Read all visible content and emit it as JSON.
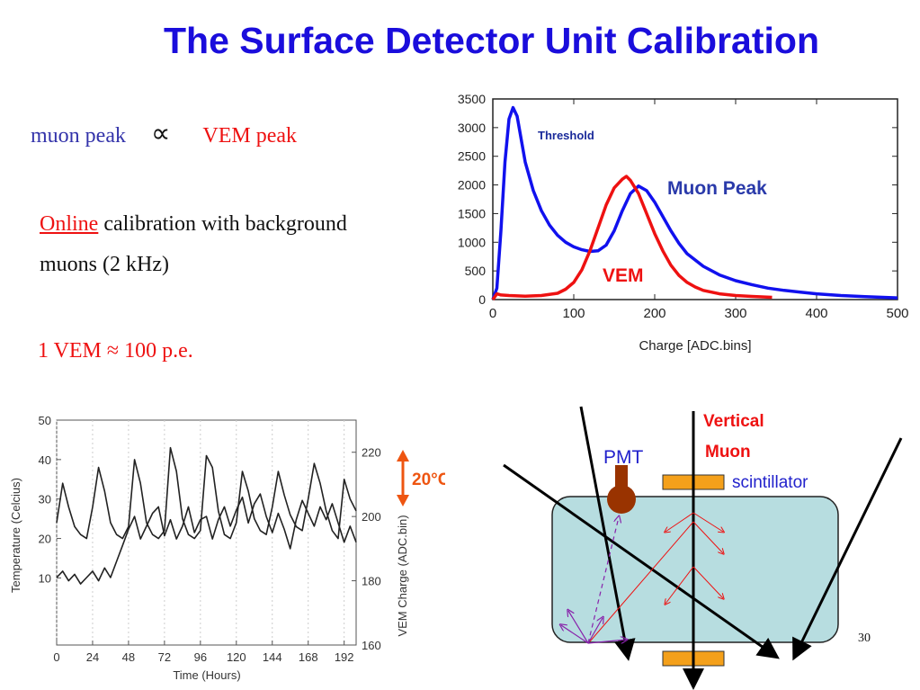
{
  "slide": {
    "title": "The Surface Detector Unit Calibration",
    "page_number": "30"
  },
  "text": {
    "muon_peak": "muon peak",
    "proportional_symbol": "∝",
    "vem_peak": "VEM peak",
    "online_word": "Online",
    "calibration_rest": " calibration with background",
    "muons_line": "muons (2 kHz)",
    "vem_pe": "1 VEM ≈ 100 p.e."
  },
  "chart_data": [
    {
      "type": "line",
      "xlabel": "Charge [ADC.bins]",
      "ylabel": "",
      "xlim": [
        0,
        500
      ],
      "ylim": [
        0,
        3500
      ],
      "x_ticks": [
        "0",
        "100",
        "200",
        "300",
        "400",
        "500"
      ],
      "y_ticks": [
        "0",
        "500",
        "1000",
        "1500",
        "2000",
        "2500",
        "3000",
        "3500"
      ],
      "annotations": [
        "Threshold",
        "Muon Peak",
        "VEM"
      ],
      "series": [
        {
          "color": "#1111ee",
          "x": [
            0,
            5,
            10,
            15,
            20,
            25,
            30,
            35,
            40,
            50,
            60,
            70,
            80,
            90,
            100,
            110,
            120,
            130,
            140,
            150,
            160,
            170,
            180,
            190,
            200,
            210,
            220,
            230,
            240,
            260,
            280,
            300,
            320,
            340,
            360,
            380,
            400,
            430,
            460,
            500
          ],
          "y": [
            0,
            200,
            1200,
            2400,
            3150,
            3350,
            3200,
            2800,
            2400,
            1900,
            1550,
            1300,
            1120,
            1000,
            920,
            870,
            840,
            850,
            950,
            1200,
            1550,
            1850,
            1980,
            1900,
            1700,
            1450,
            1200,
            980,
            800,
            580,
            430,
            330,
            260,
            200,
            160,
            130,
            100,
            70,
            50,
            30
          ]
        },
        {
          "color": "#ee1111",
          "x": [
            0,
            5,
            10,
            20,
            40,
            60,
            80,
            90,
            100,
            110,
            120,
            130,
            140,
            150,
            160,
            165,
            170,
            180,
            190,
            200,
            210,
            220,
            230,
            240,
            250,
            260,
            280,
            300,
            320,
            345
          ],
          "y": [
            0,
            100,
            80,
            70,
            60,
            70,
            110,
            180,
            300,
            520,
            850,
            1250,
            1650,
            1950,
            2100,
            2150,
            2080,
            1850,
            1500,
            1150,
            850,
            600,
            420,
            300,
            220,
            160,
            100,
            70,
            55,
            40
          ]
        }
      ]
    },
    {
      "type": "line",
      "xlabel": "Time (Hours)",
      "ylabel": "Temperature (Celcius)",
      "ylabel_right": "VEM Charge (ADC.bin)",
      "x_ticks": [
        "0",
        "24",
        "48",
        "72",
        "96",
        "120",
        "144",
        "168",
        "192"
      ],
      "y_ticks_left": [
        "10",
        "20",
        "30",
        "40",
        "50"
      ],
      "y_ticks_right": [
        "160",
        "180",
        "200",
        "220"
      ],
      "xlim": [
        0,
        200
      ],
      "ylim_left": [
        -7,
        50
      ],
      "ylim_right": [
        160,
        230
      ],
      "annotations": [
        "20°C"
      ],
      "series": [
        {
          "name": "Temperature",
          "axis": "left",
          "x": [
            0,
            4,
            8,
            12,
            16,
            20,
            24,
            28,
            32,
            36,
            40,
            44,
            48,
            52,
            56,
            60,
            64,
            68,
            72,
            76,
            80,
            84,
            88,
            92,
            96,
            100,
            104,
            108,
            112,
            116,
            120,
            124,
            128,
            132,
            136,
            140,
            144,
            148,
            152,
            156,
            160,
            164,
            168,
            172,
            176,
            180,
            184,
            188,
            192,
            196,
            200
          ],
          "y": [
            24,
            34,
            28,
            23,
            21,
            20,
            28,
            38,
            32,
            24,
            21,
            20,
            23,
            40,
            34,
            24,
            21,
            20,
            22,
            43,
            37,
            25,
            21,
            20,
            22,
            41,
            38,
            27,
            21,
            20,
            24,
            37,
            32,
            25,
            22,
            21,
            28,
            37,
            31,
            26,
            23,
            22,
            30,
            39,
            34,
            27,
            22,
            20,
            35,
            30,
            27
          ]
        },
        {
          "name": "VEM Charge",
          "axis": "right",
          "x": [
            0,
            4,
            8,
            12,
            16,
            20,
            24,
            28,
            32,
            36,
            40,
            44,
            48,
            52,
            56,
            60,
            64,
            68,
            72,
            76,
            80,
            84,
            88,
            92,
            96,
            100,
            104,
            108,
            112,
            116,
            120,
            124,
            128,
            132,
            136,
            140,
            144,
            148,
            152,
            156,
            160,
            164,
            168,
            172,
            176,
            180,
            184,
            188,
            192,
            196,
            200
          ],
          "y": [
            181,
            183,
            180,
            182,
            179,
            181,
            183,
            180,
            184,
            181,
            186,
            191,
            196,
            200,
            193,
            197,
            201,
            203,
            194,
            199,
            193,
            197,
            203,
            195,
            199,
            200,
            193,
            199,
            203,
            197,
            202,
            206,
            198,
            204,
            207,
            200,
            195,
            201,
            196,
            190,
            199,
            205,
            201,
            197,
            203,
            199,
            204,
            198,
            192,
            197,
            192
          ]
        }
      ]
    }
  ],
  "diagram": {
    "pmt_label": "PMT",
    "vertical_label": "Vertical",
    "muon_label": "Muon",
    "scintillator_label": "scintillator"
  }
}
